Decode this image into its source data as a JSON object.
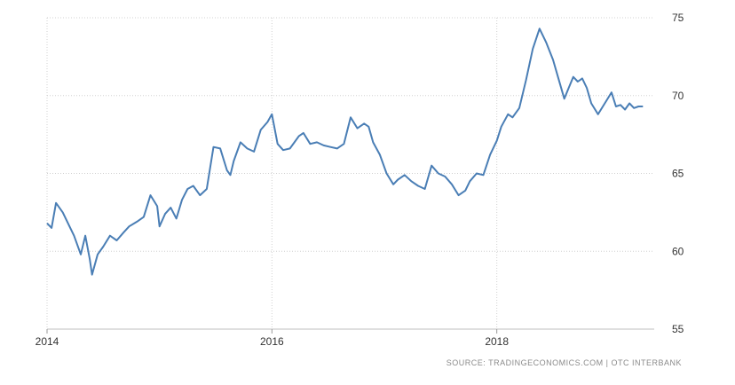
{
  "chart_data": {
    "type": "line",
    "title": "",
    "xlabel": "",
    "ylabel": "",
    "xlim": [
      2014.0,
      2019.4
    ],
    "ylim": [
      55,
      75
    ],
    "x_ticks": [
      2014,
      2016,
      2018
    ],
    "x_tick_labels": [
      "2014",
      "2016",
      "2018"
    ],
    "y_ticks": [
      55,
      60,
      65,
      70,
      75
    ],
    "y_tick_labels": [
      "55",
      "60",
      "65",
      "70",
      "75"
    ],
    "y_axis_position": "right",
    "grid": true,
    "grid_style": "dotted",
    "line_color": "#4a7eb5",
    "x": [
      2014.0,
      2014.04,
      2014.08,
      2014.14,
      2014.2,
      2014.24,
      2014.3,
      2014.34,
      2014.38,
      2014.4,
      2014.45,
      2014.5,
      2014.56,
      2014.62,
      2014.68,
      2014.73,
      2014.8,
      2014.86,
      2014.92,
      2014.98,
      2015.0,
      2015.05,
      2015.1,
      2015.15,
      2015.2,
      2015.25,
      2015.3,
      2015.36,
      2015.42,
      2015.48,
      2015.54,
      2015.6,
      2015.63,
      2015.66,
      2015.72,
      2015.78,
      2015.84,
      2015.9,
      2015.96,
      2016.0,
      2016.05,
      2016.1,
      2016.16,
      2016.2,
      2016.24,
      2016.28,
      2016.34,
      2016.4,
      2016.46,
      2016.52,
      2016.58,
      2016.64,
      2016.7,
      2016.76,
      2016.82,
      2016.86,
      2016.9,
      2016.96,
      2017.02,
      2017.08,
      2017.12,
      2017.18,
      2017.24,
      2017.3,
      2017.36,
      2017.42,
      2017.48,
      2017.54,
      2017.6,
      2017.66,
      2017.72,
      2017.76,
      2017.82,
      2017.88,
      2017.94,
      2018.0,
      2018.04,
      2018.1,
      2018.14,
      2018.2,
      2018.26,
      2018.32,
      2018.38,
      2018.44,
      2018.5,
      2018.56,
      2018.6,
      2018.64,
      2018.68,
      2018.72,
      2018.76,
      2018.8,
      2018.84,
      2018.9,
      2018.96,
      2019.02,
      2019.06,
      2019.1,
      2019.14,
      2019.18,
      2019.22,
      2019.26,
      2019.3
    ],
    "values": [
      61.8,
      61.5,
      63.1,
      62.5,
      61.6,
      61.0,
      59.8,
      61.0,
      59.5,
      58.5,
      59.8,
      60.3,
      61.0,
      60.7,
      61.2,
      61.6,
      61.9,
      62.2,
      63.6,
      62.9,
      61.6,
      62.4,
      62.8,
      62.1,
      63.3,
      64.0,
      64.2,
      63.6,
      64.0,
      66.7,
      66.6,
      65.2,
      64.9,
      65.8,
      67.0,
      66.6,
      66.4,
      67.8,
      68.3,
      68.8,
      66.9,
      66.5,
      66.6,
      67.0,
      67.4,
      67.6,
      66.9,
      67.0,
      66.8,
      66.7,
      66.6,
      66.9,
      68.6,
      67.9,
      68.2,
      68.0,
      67.0,
      66.2,
      65.0,
      64.3,
      64.6,
      64.9,
      64.5,
      64.2,
      64.0,
      65.5,
      65.0,
      64.8,
      64.3,
      63.6,
      63.9,
      64.5,
      65.0,
      64.9,
      66.2,
      67.1,
      68.0,
      68.8,
      68.6,
      69.2,
      71.0,
      73.0,
      74.3,
      73.4,
      72.3,
      70.8,
      69.8,
      70.5,
      71.2,
      70.9,
      71.1,
      70.5,
      69.5,
      68.8,
      69.5,
      70.2,
      69.3,
      69.4,
      69.1,
      69.5,
      69.2,
      69.3,
      69.3
    ]
  },
  "source_note": "SOURCE: TRADINGECONOMICS.COM | OTC INTERBANK"
}
